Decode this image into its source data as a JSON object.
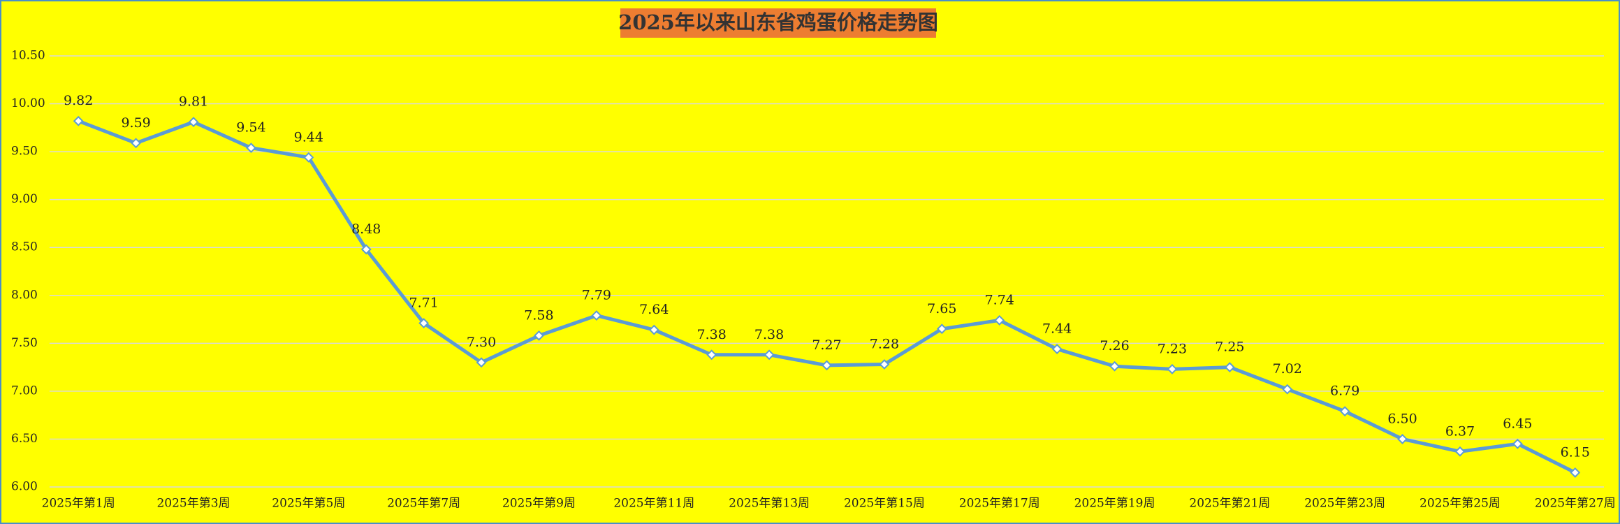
{
  "chart_data": {
    "type": "line",
    "title": "2025年以来山东省鸡蛋价格走势图",
    "categories": [
      "2025年第1周",
      null,
      "2025年第3周",
      null,
      "2025年第5周",
      null,
      "2025年第7周",
      null,
      "2025年第9周",
      null,
      "2025年第11周",
      null,
      "2025年第13周",
      null,
      "2025年第15周",
      null,
      "2025年第17周",
      null,
      "2025年第19周",
      null,
      "2025年第21周",
      null,
      "2025年第23周",
      null,
      "2025年第25周",
      null,
      "2025年第27周"
    ],
    "values": [
      9.82,
      9.59,
      9.81,
      9.54,
      9.44,
      8.48,
      7.71,
      7.3,
      7.58,
      7.79,
      7.64,
      7.38,
      7.38,
      7.27,
      7.28,
      7.65,
      7.74,
      7.44,
      7.26,
      7.23,
      7.25,
      7.02,
      6.79,
      6.5,
      6.37,
      6.45,
      6.15
    ],
    "value_labels": [
      "9.82",
      "9.59",
      "9.81",
      "9.54",
      "9.44",
      "8.48",
      "7.71",
      "7.30",
      "7.58",
      "7.79",
      "7.64",
      "7.38",
      "7.38",
      "7.27",
      "7.28",
      "7.65",
      "7.74",
      "7.44",
      "7.26",
      "7.23",
      "7.25",
      "7.02",
      "6.79",
      "6.50",
      "6.37",
      "6.45",
      "6.15"
    ],
    "color": "#5b9bd5",
    "ylim": [
      6,
      10.5
    ],
    "yticks": [
      {
        "value": 6,
        "label": "6.00"
      },
      {
        "value": 6.5,
        "label": "6.50"
      },
      {
        "value": 7,
        "label": "7.00"
      },
      {
        "value": 7.5,
        "label": "7.50"
      },
      {
        "value": 8,
        "label": "8.00"
      },
      {
        "value": 8.5,
        "label": "8.50"
      },
      {
        "value": 9,
        "label": "9.00"
      },
      {
        "value": 9.5,
        "label": "9.50"
      },
      {
        "value": 10,
        "label": "10.00"
      },
      {
        "value": 10.5,
        "label": "10.50"
      }
    ],
    "grid": true
  }
}
